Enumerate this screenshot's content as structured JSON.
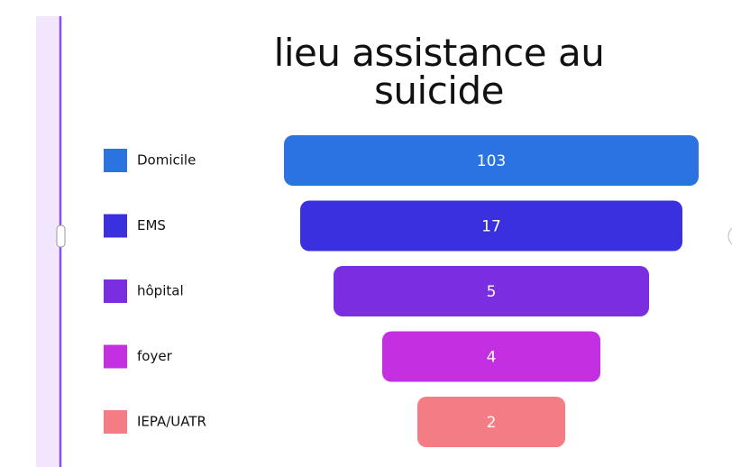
{
  "chart_data": {
    "type": "funnel",
    "title": "lieu assistance au suicide",
    "categories": [
      "Domicile",
      "EMS",
      "hôpital",
      "foyer",
      "IEPA/UATR"
    ],
    "values": [
      103,
      17,
      5,
      4,
      2
    ],
    "colors": [
      "#2b73e0",
      "#3b30e0",
      "#7b2ee0",
      "#c42fe2",
      "#f47c84"
    ]
  }
}
